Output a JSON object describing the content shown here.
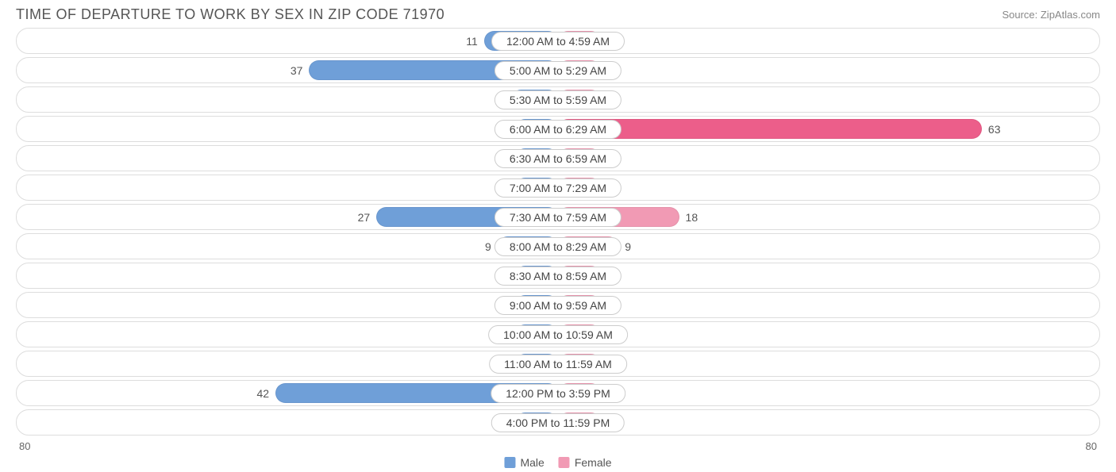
{
  "title": "TIME OF DEPARTURE TO WORK BY SEX IN ZIP CODE 71970",
  "source": "Source: ZipAtlas.com",
  "chart": {
    "type": "diverging-bar",
    "axis_max": 80,
    "axis_left_label": "80",
    "axis_right_label": "80",
    "min_bar_pct": 8,
    "background_color": "#ffffff",
    "row_border_color": "#dddddd",
    "label_border_color": "#cccccc",
    "text_color": "#555555",
    "series": {
      "male": {
        "label": "Male",
        "color": "#6f9fd8",
        "swatch": "#6f9fd8"
      },
      "female": {
        "label": "Female",
        "color": "#f19ab4",
        "swatch": "#f19ab4"
      },
      "female_highlight_color": "#ec5e8a"
    },
    "rows": [
      {
        "label": "12:00 AM to 4:59 AM",
        "male": 11,
        "female": 0
      },
      {
        "label": "5:00 AM to 5:29 AM",
        "male": 37,
        "female": 0
      },
      {
        "label": "5:30 AM to 5:59 AM",
        "male": 7,
        "female": 0
      },
      {
        "label": "6:00 AM to 6:29 AM",
        "male": 6,
        "female": 63,
        "female_highlight": true
      },
      {
        "label": "6:30 AM to 6:59 AM",
        "male": 0,
        "female": 0
      },
      {
        "label": "7:00 AM to 7:29 AM",
        "male": 0,
        "female": 5
      },
      {
        "label": "7:30 AM to 7:59 AM",
        "male": 27,
        "female": 18
      },
      {
        "label": "8:00 AM to 8:29 AM",
        "male": 9,
        "female": 9
      },
      {
        "label": "8:30 AM to 8:59 AM",
        "male": 0,
        "female": 0
      },
      {
        "label": "9:00 AM to 9:59 AM",
        "male": 0,
        "female": 0
      },
      {
        "label": "10:00 AM to 10:59 AM",
        "male": 0,
        "female": 0
      },
      {
        "label": "11:00 AM to 11:59 AM",
        "male": 0,
        "female": 0
      },
      {
        "label": "12:00 PM to 3:59 PM",
        "male": 42,
        "female": 0
      },
      {
        "label": "4:00 PM to 11:59 PM",
        "male": 0,
        "female": 0
      }
    ]
  }
}
